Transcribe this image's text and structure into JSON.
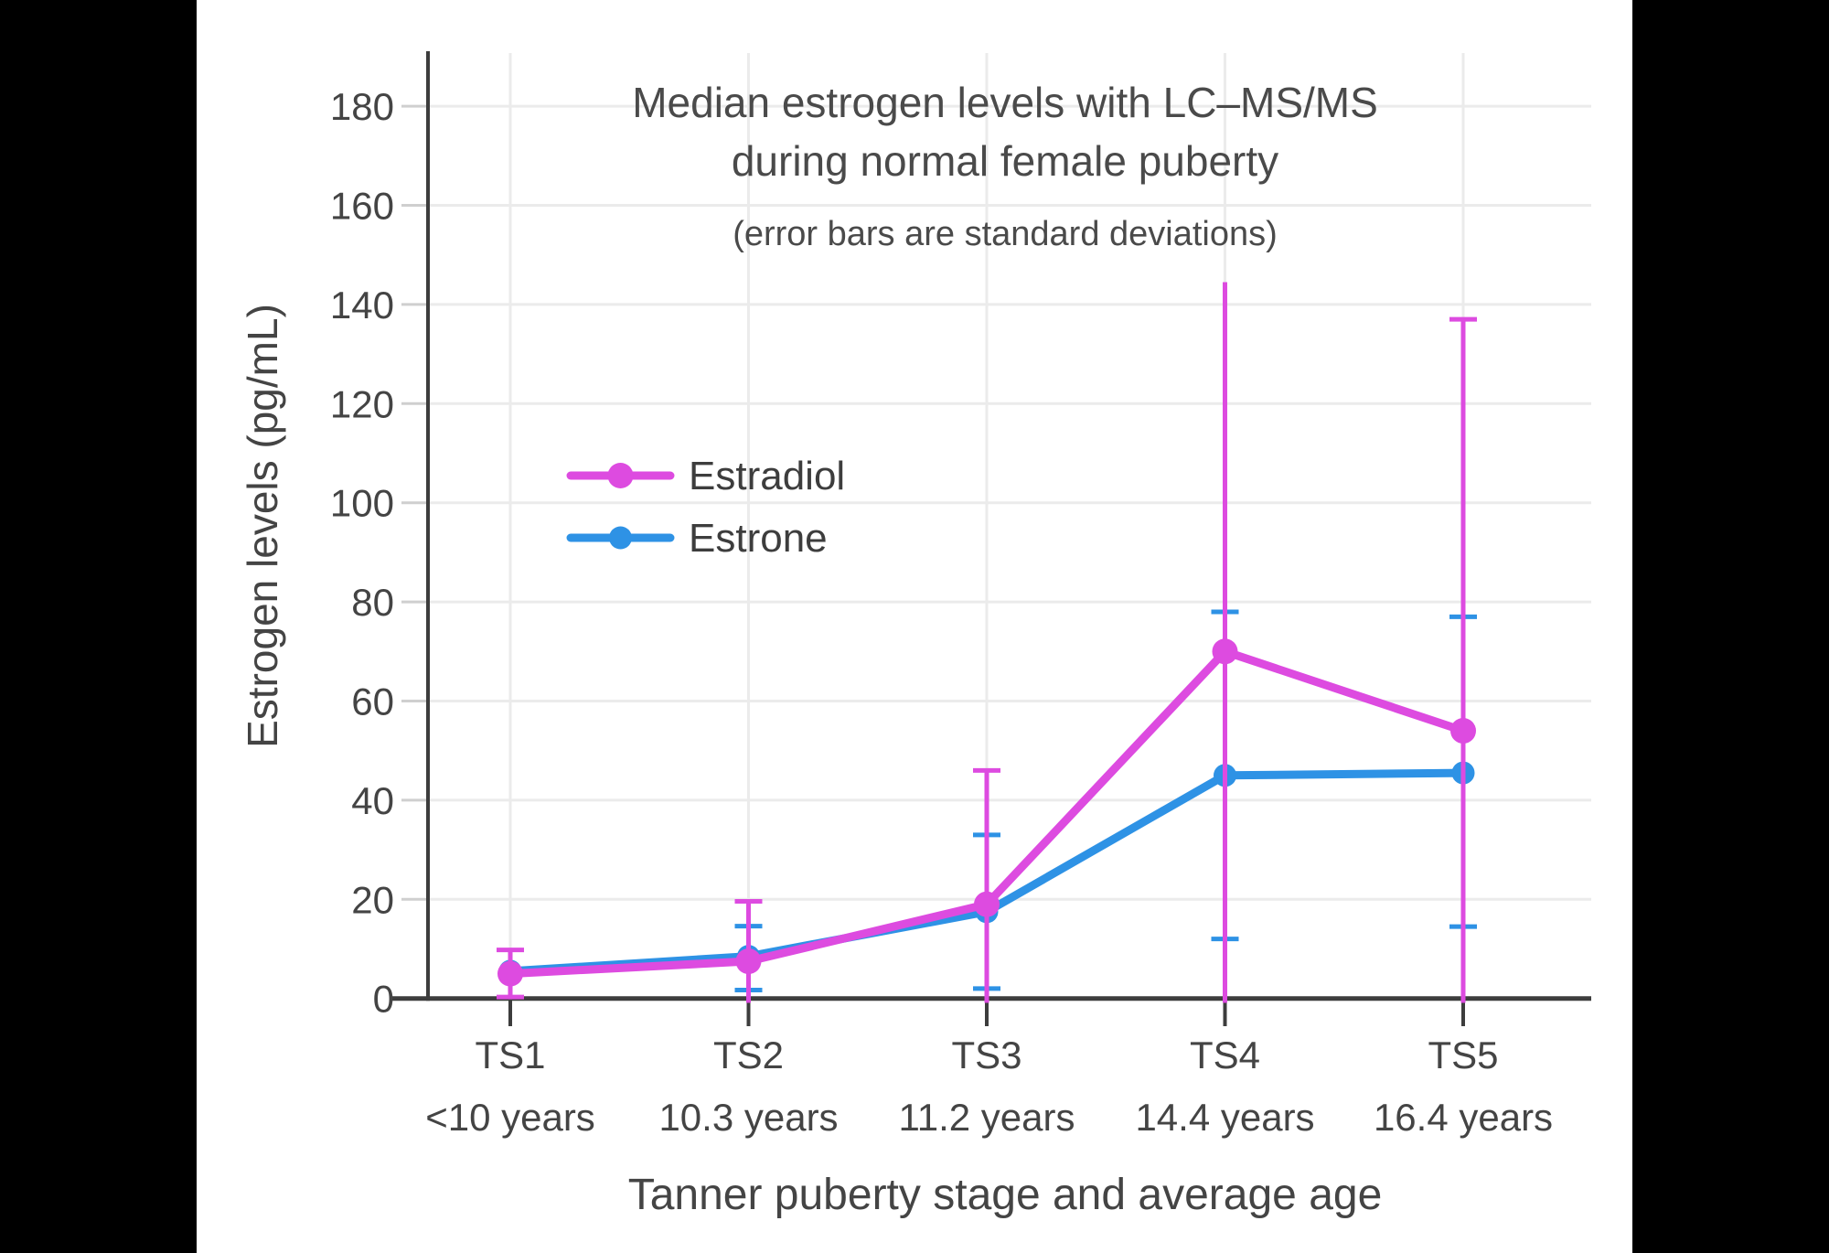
{
  "frame": {
    "background": "#000000",
    "canvas_background": "#ffffff"
  },
  "chart_data": {
    "type": "line",
    "title_line1": "Median estrogen levels with LC–MS/MS",
    "title_line2": "during normal female puberty",
    "subtitle": "(error bars are standard deviations)",
    "xlabel": "Tanner puberty stage and average age",
    "ylabel": "Estrogen levels (pg/mL)",
    "yticks": [
      0,
      20,
      40,
      60,
      80,
      100,
      120,
      140,
      160,
      180
    ],
    "ylim": [
      0,
      190
    ],
    "grid": true,
    "legend_position": "inside-upper-left",
    "categories": [
      {
        "stage": "TS1",
        "age": "<10 years"
      },
      {
        "stage": "TS2",
        "age": "10.3 years"
      },
      {
        "stage": "TS3",
        "age": "11.2 years"
      },
      {
        "stage": "TS4",
        "age": "14.4 years"
      },
      {
        "stage": "TS5",
        "age": "16.4 years"
      }
    ],
    "series": [
      {
        "name": "Estradiol",
        "color": "#dd4be0",
        "values": [
          5,
          7.5,
          19,
          70,
          54
        ],
        "error_bars": [
          {
            "lo": 0.3,
            "hi": 9.8,
            "cap_lo": true,
            "cap_hi": true
          },
          {
            "lo": null,
            "hi": 19.6,
            "cap_lo": false,
            "cap_hi": true
          },
          {
            "lo": null,
            "hi": 46,
            "cap_lo": false,
            "cap_hi": true
          },
          {
            "lo": null,
            "hi": 144.5,
            "cap_lo": false,
            "cap_hi": false
          },
          {
            "lo": null,
            "hi": 137,
            "cap_lo": false,
            "cap_hi": true
          }
        ]
      },
      {
        "name": "Estrone",
        "color": "#2e92e5",
        "values": [
          5.5,
          8.5,
          17.5,
          45,
          45.5
        ],
        "error_bars": [
          null,
          {
            "lo": 1.7,
            "hi": 14.6,
            "cap_lo": true,
            "cap_hi": true
          },
          {
            "lo": 2,
            "hi": 33,
            "cap_lo": true,
            "cap_hi": true
          },
          {
            "lo": 12,
            "hi": 78,
            "cap_lo": true,
            "cap_hi": true
          },
          {
            "lo": 14.5,
            "hi": 77,
            "cap_lo": true,
            "cap_hi": true
          }
        ]
      }
    ],
    "colors": {
      "axis": "#3d3d3d",
      "tick_text": "#444444",
      "title_text": "#4a4a4a",
      "grid": "#ebebeb",
      "tick_dash": "#cfcfcf"
    }
  }
}
